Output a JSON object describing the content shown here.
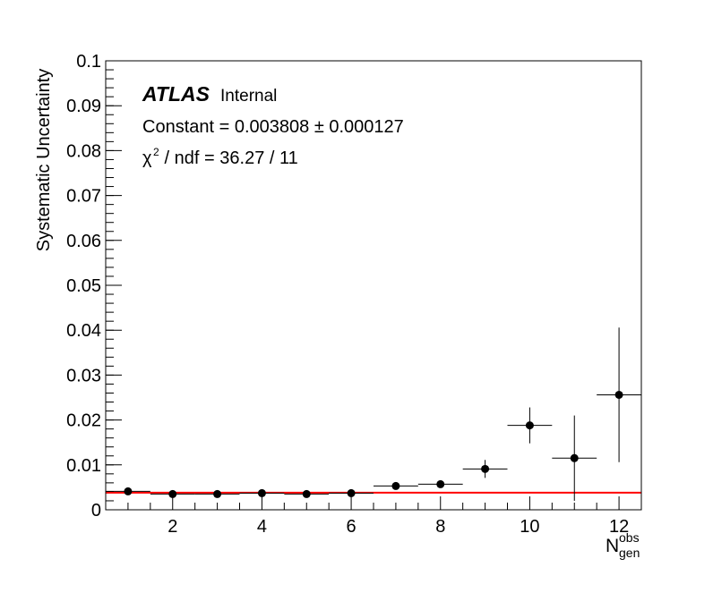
{
  "chart_data": {
    "type": "scatter",
    "title": "",
    "xlabel": "N",
    "xlabel_sup": "obs",
    "xlabel_sub": "gen",
    "ylabel": "Systematic Uncertainty",
    "xlim": [
      0.5,
      12.5
    ],
    "ylim": [
      0,
      0.1
    ],
    "x_ticks": [
      2,
      4,
      6,
      8,
      10,
      12
    ],
    "y_ticks": [
      0,
      0.01,
      0.02,
      0.03,
      0.04,
      0.05,
      0.06,
      0.07,
      0.08,
      0.09,
      0.1
    ],
    "y_tick_labels": [
      "0",
      "0.01",
      "0.02",
      "0.03",
      "0.04",
      "0.05",
      "0.06",
      "0.07",
      "0.08",
      "0.09",
      "0.1"
    ],
    "x_tick_labels": [
      "2",
      "4",
      "6",
      "8",
      "10",
      "12"
    ],
    "grid": false,
    "points": [
      {
        "x": 1,
        "y": 0.0041,
        "xerr": 0.5,
        "yerr": 0.0003
      },
      {
        "x": 2,
        "y": 0.0035,
        "xerr": 0.5,
        "yerr": 0.0002
      },
      {
        "x": 3,
        "y": 0.0035,
        "xerr": 0.5,
        "yerr": 0.0002
      },
      {
        "x": 4,
        "y": 0.0037,
        "xerr": 0.5,
        "yerr": 0.0002
      },
      {
        "x": 5,
        "y": 0.0035,
        "xerr": 0.5,
        "yerr": 0.0002
      },
      {
        "x": 6,
        "y": 0.0037,
        "xerr": 0.5,
        "yerr": 0.0003
      },
      {
        "x": 7,
        "y": 0.0053,
        "xerr": 0.5,
        "yerr": 0.0004
      },
      {
        "x": 8,
        "y": 0.0057,
        "xerr": 0.5,
        "yerr": 0.0005
      },
      {
        "x": 9,
        "y": 0.0091,
        "xerr": 0.5,
        "yerr": 0.002
      },
      {
        "x": 10,
        "y": 0.0188,
        "xerr": 0.5,
        "yerr": 0.004
      },
      {
        "x": 11,
        "y": 0.0115,
        "xerr": 0.5,
        "yerr": 0.0095
      },
      {
        "x": 12,
        "y": 0.0256,
        "xerr": 0.5,
        "yerr": 0.015
      }
    ],
    "fit": {
      "type": "constant",
      "value": 0.003808,
      "color": "#ff0000"
    },
    "annotations": {
      "atlas": "ATLAS",
      "internal": "Internal",
      "constant": "Constant = 0.003808 ± 0.000127",
      "chi2_symbol": "χ",
      "chi2_sup": "2",
      "chi2_rest": " / ndf = 36.27 / 11"
    }
  }
}
